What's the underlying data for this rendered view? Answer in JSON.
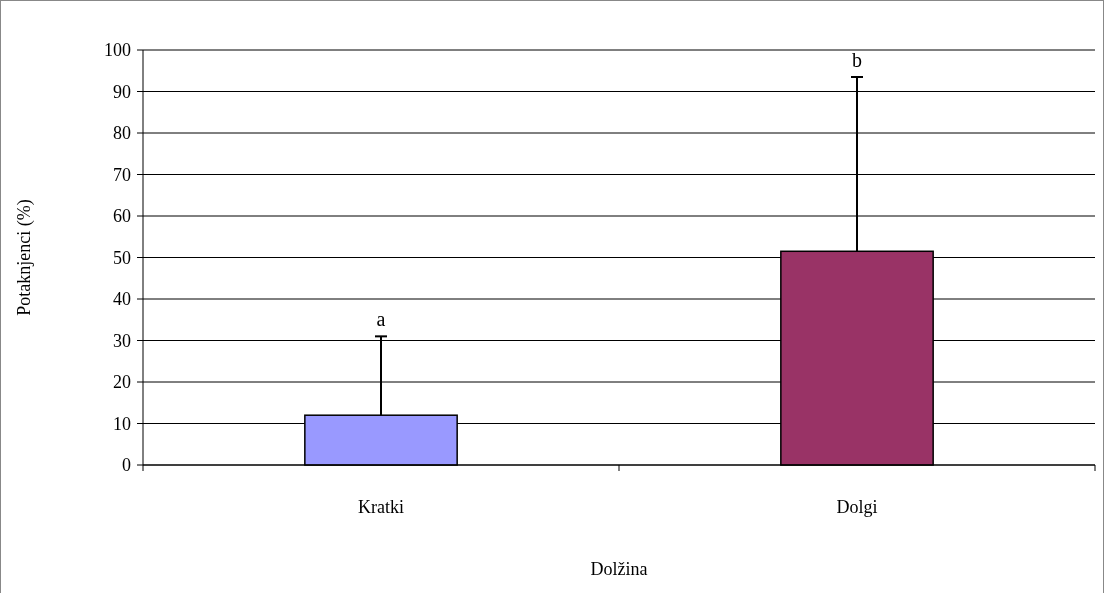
{
  "chart_data": {
    "type": "bar",
    "xlabel": "Dolžina",
    "ylabel": "Potaknjenci (%)",
    "categories": [
      "Kratki",
      "Dolgi"
    ],
    "values": [
      12,
      51.5
    ],
    "colors": [
      "#9999ff",
      "#993366"
    ],
    "errors": [
      [
        12,
        31
      ],
      [
        51.5,
        93.5
      ]
    ],
    "ylim": [
      0,
      100
    ],
    "yticks": [
      0,
      10,
      20,
      30,
      40,
      50,
      60,
      70,
      80,
      90,
      100
    ],
    "grid": "y",
    "annotations": [
      {
        "text": "a",
        "x": "Kratki",
        "y": 31
      },
      {
        "text": "b",
        "x": "Dolgi",
        "y": 93.5
      }
    ]
  }
}
